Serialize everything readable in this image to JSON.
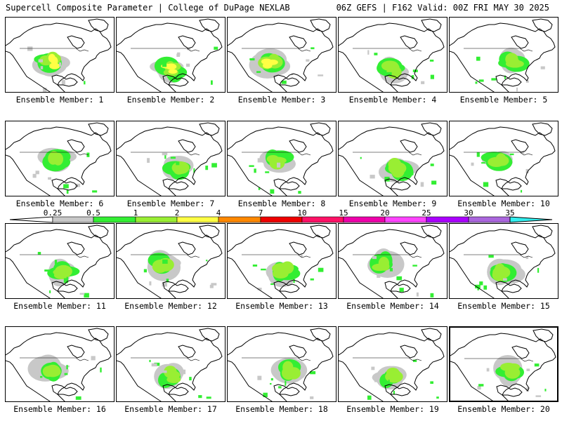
{
  "header": {
    "title": "Supercell Composite Parameter | College of DuPage NEXLAB",
    "run_info": "06Z GEFS | F162 Valid: 00Z FRI MAY 30 2025"
  },
  "member_prefix": "Ensemble Member: ",
  "members": [
    1,
    2,
    3,
    4,
    5,
    6,
    7,
    8,
    9,
    10,
    11,
    12,
    13,
    14,
    15,
    16,
    17,
    18,
    19,
    20
  ],
  "legend": {
    "levels": [
      "0.25",
      "0.5",
      "1",
      "2",
      "4",
      "7",
      "10",
      "15",
      "20",
      "25",
      "30",
      "35"
    ],
    "colors": [
      "#c8c8c8",
      "#33ee33",
      "#99ee33",
      "#ffff44",
      "#ff8800",
      "#ee0000",
      "#ff1166",
      "#ee00aa",
      "#ff44ff",
      "#aa00ff",
      "#aa66dd",
      "#33eeee"
    ]
  },
  "selected_member": 20
}
